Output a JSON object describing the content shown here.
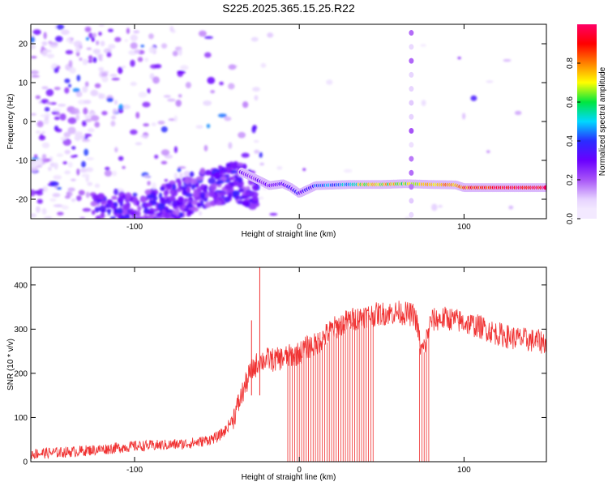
{
  "title": "S225.2025.365.15.25.R22",
  "colors": {
    "snr_line": "#f03030",
    "colormap": [
      "#ffffff",
      "#e6d2ff",
      "#a855f7",
      "#6a00ff",
      "#2a2cff",
      "#00d8ff",
      "#00e640",
      "#ffff00",
      "#ff8000",
      "#ff0000",
      "#ff0066"
    ]
  },
  "chart_data": [
    {
      "type": "heatmap",
      "xlabel": "Height of straight line (km)",
      "ylabel": "Frequency (Hz)",
      "xlim": [
        -163,
        150
      ],
      "ylim": [
        -25,
        25
      ],
      "xticks": [
        {
          "value": -100,
          "label": "-100"
        },
        {
          "value": 0,
          "label": "0"
        },
        {
          "value": 100,
          "label": "100"
        }
      ],
      "yticks": [
        {
          "value": -20,
          "label": "-20"
        },
        {
          "value": -10,
          "label": "-10"
        },
        {
          "value": 0,
          "label": "0"
        },
        {
          "value": 10,
          "label": "10"
        },
        {
          "value": 20,
          "label": "20"
        }
      ],
      "ridge": {
        "description": "dominant frequency band",
        "x": [
          -90,
          -70,
          -50,
          -35,
          -25,
          -18,
          -10,
          -5,
          0,
          10,
          30,
          50,
          65,
          80,
          95,
          100,
          120,
          150
        ],
        "y": [
          -18,
          -15,
          -13,
          -13,
          -15,
          -16.5,
          -16,
          -17,
          -18.5,
          -16.5,
          -16.2,
          -16.2,
          -16,
          -16.2,
          -16.3,
          -17,
          -17,
          -17
        ]
      },
      "vertical_stripe_x": 68,
      "colorbar": {
        "label": "Normalized spectral amplitude",
        "range": [
          0.0,
          1.0
        ],
        "ticks": [
          {
            "value": 0.0,
            "label": "0.0"
          },
          {
            "value": 0.2,
            "label": "0.2"
          },
          {
            "value": 0.4,
            "label": "0.4"
          },
          {
            "value": 0.6,
            "label": "0.6"
          },
          {
            "value": 0.8,
            "label": "0.8"
          }
        ]
      }
    },
    {
      "type": "line",
      "xlabel": "Height of straight line (km)",
      "ylabel": "SNR (10 * v/v)",
      "xlim": [
        -163,
        150
      ],
      "ylim": [
        0,
        440
      ],
      "xticks": [
        {
          "value": -100,
          "label": "-100"
        },
        {
          "value": 0,
          "label": "0"
        },
        {
          "value": 100,
          "label": "100"
        }
      ],
      "yticks": [
        {
          "value": 0,
          "label": "0"
        },
        {
          "value": 100,
          "label": "100"
        },
        {
          "value": 200,
          "label": "200"
        },
        {
          "value": 300,
          "label": "300"
        },
        {
          "value": 400,
          "label": "400"
        }
      ],
      "series": [
        {
          "name": "SNR",
          "x": [
            -163,
            -140,
            -120,
            -100,
            -80,
            -70,
            -60,
            -50,
            -45,
            -40,
            -35,
            -30,
            -25,
            -20,
            -15,
            -10,
            -5,
            0,
            5,
            10,
            20,
            30,
            40,
            50,
            60,
            70,
            72,
            74,
            76,
            80,
            90,
            100,
            110,
            120,
            130,
            140,
            150
          ],
          "values": [
            18,
            22,
            28,
            35,
            38,
            40,
            45,
            55,
            70,
            100,
            150,
            200,
            225,
            232,
            230,
            235,
            240,
            245,
            260,
            265,
            300,
            320,
            330,
            335,
            338,
            332,
            300,
            250,
            260,
            320,
            325,
            315,
            305,
            290,
            280,
            275,
            270
          ]
        }
      ],
      "spikes": [
        {
          "x": -24,
          "value": 440
        },
        {
          "x": -29,
          "value": 320
        }
      ],
      "dropout_regions": [
        [
          -7,
          45
        ],
        [
          73,
          79
        ]
      ]
    }
  ]
}
